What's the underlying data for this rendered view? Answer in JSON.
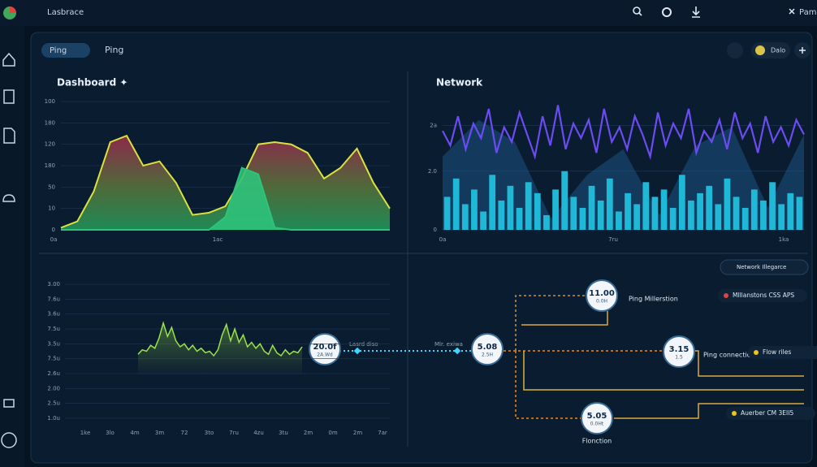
{
  "topbar": {
    "app_name": "Lasbrace",
    "user": "Pam"
  },
  "tabs": [
    "Ping",
    "Ping"
  ],
  "profile": "Dalo",
  "dashboard": {
    "title": "Dashboard ✦",
    "ylim": [
      0,
      6
    ],
    "yticks": [
      0,
      {
        "value": 1,
        "label": "10"
      },
      {
        "value": 2,
        "label": "50"
      },
      {
        "value": 3,
        "label": "180"
      },
      {
        "value": 4,
        "label": "120"
      },
      {
        "value": 5,
        "label": "180"
      },
      {
        "value": 6,
        "label": "100"
      }
    ],
    "xlabels": [
      "0a",
      "1ac"
    ],
    "series": [
      {
        "type": "area",
        "color": "#d9e23f",
        "values": [
          0.1,
          0.4,
          1.8,
          4.1,
          4.4,
          3.0,
          3.2,
          2.2,
          0.7,
          0.8,
          1.1,
          2.4,
          4.0,
          4.1,
          4.0,
          3.6,
          2.4,
          2.9,
          3.8,
          2.2,
          1.0
        ]
      },
      {
        "type": "area",
        "color": "#2fc27a",
        "values": [
          0,
          0,
          0,
          0,
          0,
          0,
          0,
          0,
          0,
          0,
          0.6,
          2.9,
          2.6,
          0.1,
          0,
          0,
          0,
          0,
          0,
          0,
          0
        ]
      }
    ]
  },
  "network": {
    "title": "Network",
    "ylim": [
      0,
      3.5
    ],
    "yticks": [
      0,
      {
        "value": 1.6,
        "label": "2.0"
      },
      {
        "value": 2.85,
        "label": "2a"
      }
    ],
    "xlabels": [
      "0a",
      "7ru",
      "1ka"
    ],
    "series": [
      {
        "type": "area",
        "color": "#1f5f94",
        "values": [
          2.0,
          3.0,
          2.4,
          0.3,
          1.5,
          2.2,
          0.4,
          2.3,
          2.8,
          0.6,
          2.6
        ]
      },
      {
        "type": "line",
        "color": "#6a4cf0",
        "values": [
          2.7,
          2.3,
          3.1,
          2.2,
          2.9,
          2.5,
          3.3,
          2.1,
          2.8,
          2.4,
          3.2,
          2.6,
          2.0,
          3.1,
          2.3,
          3.4,
          2.2,
          2.9,
          2.5,
          3.0,
          2.1,
          3.3,
          2.4,
          2.8,
          2.2,
          3.1,
          2.6,
          2.0,
          3.2,
          2.3,
          2.9,
          2.5,
          3.3,
          2.1,
          2.7,
          2.4,
          3.0,
          2.2,
          3.2,
          2.5,
          2.9,
          2.1,
          3.1,
          2.4,
          2.8,
          2.3,
          3.0,
          2.6
        ]
      },
      {
        "type": "bars",
        "color": "#1fb8d6",
        "values": [
          0.9,
          1.4,
          0.7,
          1.1,
          0.5,
          1.5,
          0.8,
          1.2,
          0.6,
          1.3,
          1.0,
          0.4,
          1.1,
          1.6,
          0.9,
          0.6,
          1.2,
          0.8,
          1.4,
          0.5,
          1.0,
          0.7,
          1.3,
          0.9,
          1.1,
          0.6,
          1.5,
          0.8,
          1.0,
          1.2,
          0.7,
          1.4,
          0.9,
          0.6,
          1.1,
          0.8,
          1.3,
          0.7,
          1.0,
          0.9
        ]
      }
    ]
  },
  "bottom_chart": {
    "ylim": [
      1,
      10
    ],
    "yticks": [
      {
        "value": 1,
        "label": "1.0u"
      },
      {
        "value": 2,
        "label": "2.5u"
      },
      {
        "value": 3,
        "label": "2.00"
      },
      {
        "value": 4,
        "label": "2.6u"
      },
      {
        "value": 5,
        "label": "7.5u"
      },
      {
        "value": 6,
        "label": "3.5u"
      },
      {
        "value": 7,
        "label": "7.5u"
      },
      {
        "value": 8,
        "label": "3.6u"
      },
      {
        "value": 9,
        "label": "7.6u"
      },
      {
        "value": 10,
        "label": "3.00"
      }
    ],
    "xlabels": [
      "1ke",
      "3lo",
      "4m",
      "3m",
      "72",
      "3to",
      "7ru",
      "4zu",
      "3tu",
      "2m",
      "0m",
      "2m",
      "7ar"
    ],
    "series": [
      {
        "type": "line",
        "color": "#9be34a",
        "values": [
          5.3,
          5.6,
          5.5,
          5.9,
          5.7,
          6.4,
          7.4,
          6.5,
          7.1,
          6.2,
          5.8,
          6.0,
          5.6,
          5.9,
          5.5,
          5.7,
          5.4,
          5.5,
          5.2,
          5.6,
          6.6,
          7.3,
          6.2,
          7.0,
          6.1,
          6.6,
          5.8,
          6.1,
          5.7,
          6.0,
          5.5,
          5.3,
          5.9,
          5.4,
          5.2,
          5.6,
          5.3,
          5.5,
          5.4,
          5.8
        ]
      }
    ]
  },
  "flow": {
    "nodes": [
      {
        "value": "20.0f",
        "sub": "2A.Wd"
      },
      {
        "value": "5.08",
        "sub": "2.5H"
      },
      {
        "value": "11.00",
        "sub": "0.0H",
        "caption": "Ping Millerstion"
      },
      {
        "value": "3.15",
        "sub": "1.5",
        "caption": "Ping connection"
      },
      {
        "value": "5.05",
        "sub": "0.0Ht",
        "caption": "Flonction"
      }
    ],
    "edge_labels": [
      "Lasrd diso",
      "Mlr. exiwa"
    ],
    "legend_title": "Network Illegarce",
    "legend": [
      {
        "label": "Mlllanstons CSS APS",
        "color": "#e0443a"
      },
      {
        "label": "Flow riles",
        "color": "#f0c419"
      },
      {
        "label": "Auerber CM 3EII5",
        "color": "#f0c419"
      }
    ]
  }
}
